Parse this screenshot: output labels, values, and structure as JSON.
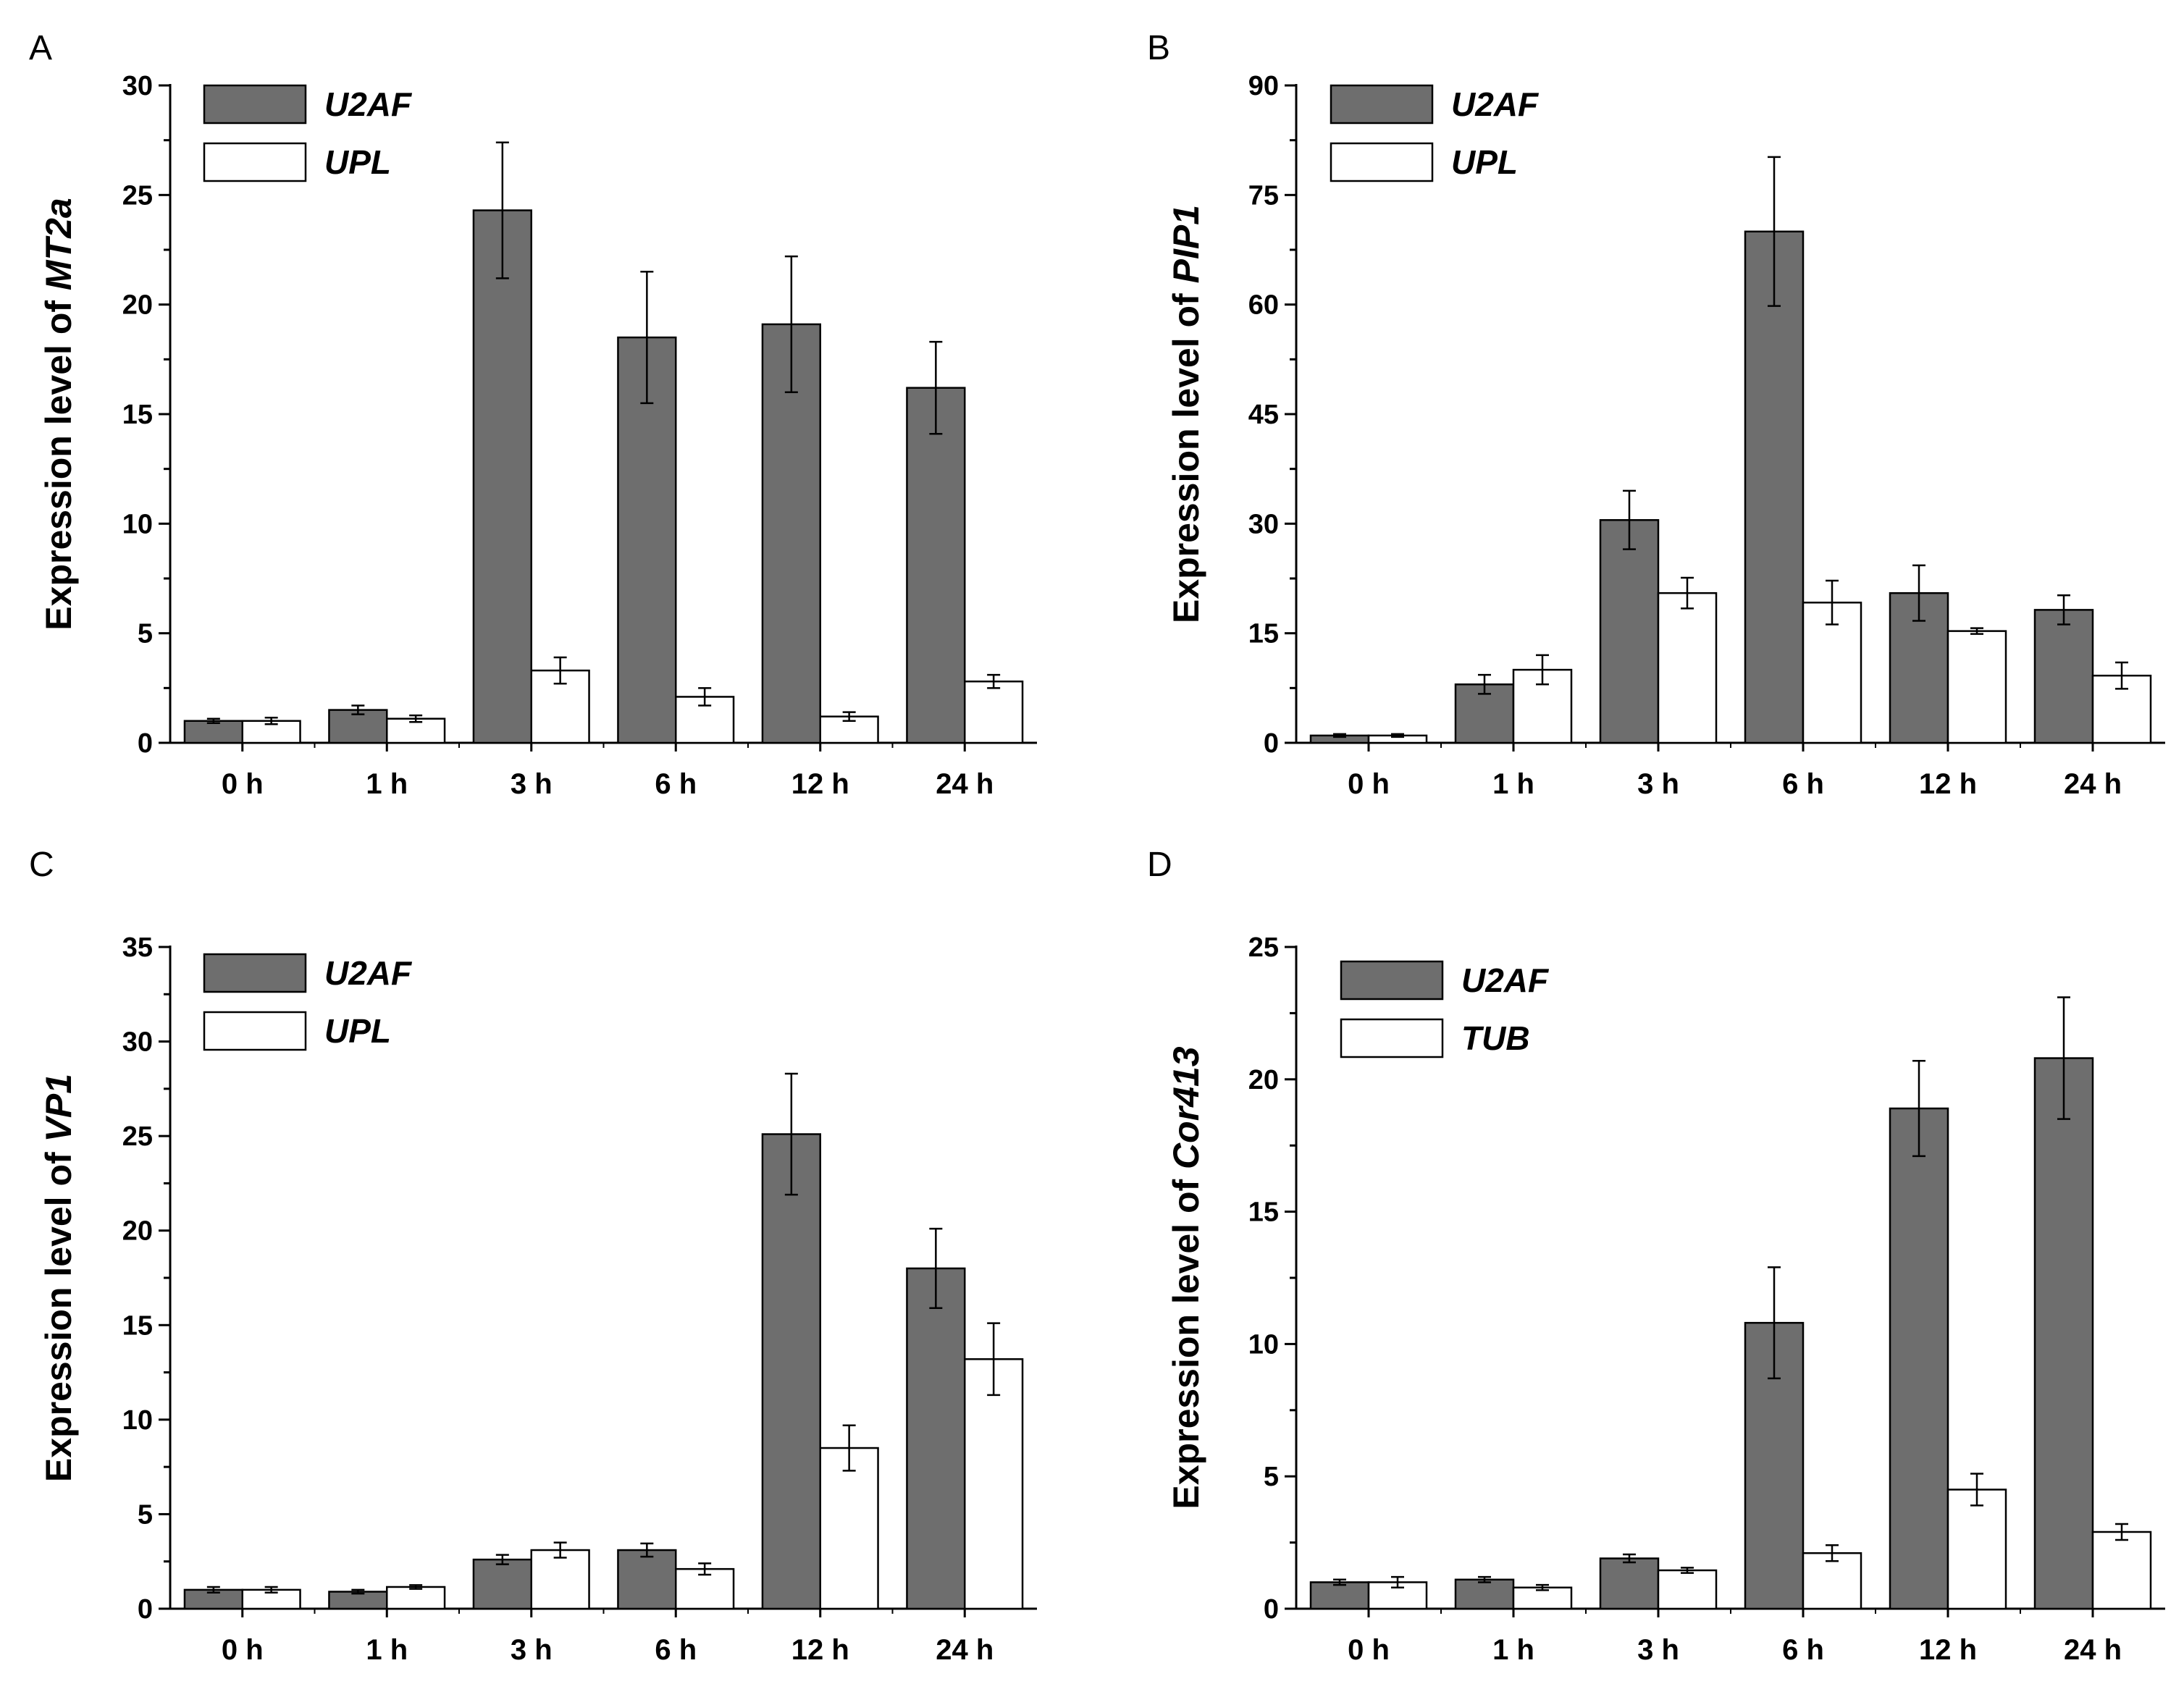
{
  "figure": {
    "colors": {
      "u2af": "#6e6e6e",
      "reference": "#ffffff",
      "stroke": "#000000"
    },
    "categories": [
      "0 h",
      "1 h",
      "3 h",
      "6 h",
      "12 h",
      "24 h"
    ]
  },
  "chart_data": [
    {
      "id": "A",
      "type": "bar",
      "panel_label": "A",
      "ylabel_prefix": "Expression level of ",
      "ylabel_gene": "MT2a",
      "ylim": [
        0,
        30
      ],
      "yticks": [
        0,
        5,
        10,
        15,
        20,
        25,
        30
      ],
      "yticklabels": [
        "0",
        "5",
        "10",
        "15",
        "20",
        "25",
        "30"
      ],
      "categories": [
        "0 h",
        "1 h",
        "3 h",
        "6 h",
        "12 h",
        "24 h"
      ],
      "legend_position": "top-left",
      "series": [
        {
          "name": "U2AF",
          "color": "#6e6e6e",
          "values": [
            1.0,
            1.5,
            24.3,
            18.5,
            19.1,
            16.2
          ],
          "errors": [
            0.1,
            0.2,
            3.1,
            3.0,
            3.1,
            2.1
          ]
        },
        {
          "name": "UPL",
          "color": "#ffffff",
          "values": [
            1.0,
            1.1,
            3.3,
            2.1,
            1.2,
            2.8
          ],
          "errors": [
            0.15,
            0.15,
            0.6,
            0.4,
            0.2,
            0.3
          ]
        }
      ]
    },
    {
      "id": "B",
      "type": "bar",
      "panel_label": "B",
      "ylabel_prefix": "Expression level of ",
      "ylabel_gene": "PIP1",
      "ylim": [
        0,
        90
      ],
      "yticks": [
        0,
        15,
        30,
        45,
        60,
        75,
        90
      ],
      "yticklabels": [
        "0",
        "15",
        "30",
        "45",
        "60",
        "75",
        "90"
      ],
      "categories": [
        "0 h",
        "1 h",
        "3 h",
        "6 h",
        "12 h",
        "24 h"
      ],
      "legend_position": "top-left",
      "series": [
        {
          "name": "U2AF",
          "color": "#6e6e6e",
          "values": [
            1.0,
            8.0,
            30.5,
            70.0,
            20.5,
            18.2
          ],
          "errors": [
            0.2,
            1.3,
            4.0,
            10.2,
            3.8,
            2.0
          ]
        },
        {
          "name": "UPL",
          "color": "#ffffff",
          "values": [
            1.0,
            10.0,
            20.5,
            19.2,
            15.3,
            9.2
          ],
          "errors": [
            0.2,
            2.0,
            2.1,
            3.0,
            0.4,
            1.8
          ]
        }
      ]
    },
    {
      "id": "C",
      "type": "bar",
      "panel_label": "C",
      "ylabel_prefix": "Expression level of ",
      "ylabel_gene": "VP1",
      "ylim": [
        0,
        35
      ],
      "yticks": [
        0,
        5,
        10,
        15,
        20,
        25,
        30,
        35
      ],
      "yticklabels": [
        "0",
        "5",
        "10",
        "15",
        "20",
        "25",
        "30",
        "35"
      ],
      "categories": [
        "0 h",
        "1 h",
        "3 h",
        "6 h",
        "12 h",
        "24 h"
      ],
      "legend_position": "top-left",
      "series": [
        {
          "name": "U2AF",
          "color": "#6e6e6e",
          "values": [
            1.0,
            0.9,
            2.6,
            3.1,
            25.1,
            18.0
          ],
          "errors": [
            0.15,
            0.1,
            0.25,
            0.35,
            3.2,
            2.1
          ]
        },
        {
          "name": "UPL",
          "color": "#ffffff",
          "values": [
            1.0,
            1.15,
            3.1,
            2.1,
            8.5,
            13.2
          ],
          "errors": [
            0.15,
            0.1,
            0.4,
            0.3,
            1.2,
            1.9
          ]
        }
      ]
    },
    {
      "id": "D",
      "type": "bar",
      "panel_label": "D",
      "ylabel_prefix": "Expression level of ",
      "ylabel_gene": "Cor413",
      "ylim": [
        0,
        25
      ],
      "yticks": [
        0,
        5,
        10,
        15,
        20,
        25
      ],
      "yticklabels": [
        "0",
        "5",
        "10",
        "15",
        "20",
        "25"
      ],
      "categories": [
        "0 h",
        "1 h",
        "3 h",
        "6 h",
        "12 h",
        "24 h"
      ],
      "legend_position": "top-left",
      "series": [
        {
          "name": "U2AF",
          "color": "#6e6e6e",
          "values": [
            1.0,
            1.1,
            1.9,
            10.8,
            18.9,
            20.8
          ],
          "errors": [
            0.1,
            0.1,
            0.15,
            2.1,
            1.8,
            2.3
          ]
        },
        {
          "name": "TUB",
          "color": "#ffffff",
          "values": [
            1.0,
            0.8,
            1.45,
            2.1,
            4.5,
            2.9
          ],
          "errors": [
            0.2,
            0.1,
            0.1,
            0.3,
            0.6,
            0.3
          ]
        }
      ]
    }
  ]
}
